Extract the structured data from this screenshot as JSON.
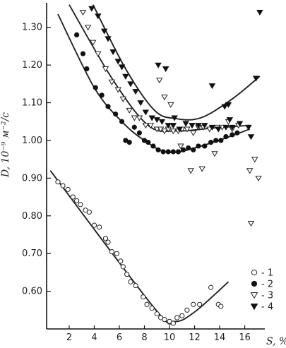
{
  "chart_data": {
    "type": "scatter",
    "title": "",
    "ylabel": "D, 10⁻⁹ м⁻²/с",
    "xlabel": "S, %",
    "xlim": [
      0.2,
      17.6
    ],
    "ylim": [
      0.5,
      1.365
    ],
    "x_ticks": [
      2,
      4,
      6,
      8,
      10,
      12,
      14,
      16
    ],
    "y_ticks": [
      0.6,
      0.7,
      0.8,
      0.9,
      1.0,
      1.1,
      1.2,
      1.3
    ],
    "y_tick_labels": [
      "0.60",
      "0.70",
      "0.80",
      "0.90",
      "1.00",
      "1.10",
      "1.20",
      "1.30"
    ],
    "grid": false,
    "legend_position": "bottom-right",
    "series": [
      {
        "name": "1",
        "marker": "circle-open",
        "points": [
          [
            1.1,
            0.89
          ],
          [
            1.5,
            0.88
          ],
          [
            1.9,
            0.87
          ],
          [
            2.3,
            0.85
          ],
          [
            2.6,
            0.84
          ],
          [
            2.9,
            0.83
          ],
          [
            3.3,
            0.815
          ],
          [
            3.6,
            0.81
          ],
          [
            4.0,
            0.775
          ],
          [
            4.4,
            0.77
          ],
          [
            4.9,
            0.74
          ],
          [
            5.1,
            0.73
          ],
          [
            5.4,
            0.705
          ],
          [
            5.8,
            0.7
          ],
          [
            6.1,
            0.68
          ],
          [
            6.3,
            0.665
          ],
          [
            6.6,
            0.645
          ],
          [
            6.9,
            0.625
          ],
          [
            7.3,
            0.615
          ],
          [
            7.9,
            0.585
          ],
          [
            8.2,
            0.565
          ],
          [
            8.6,
            0.555
          ],
          [
            9.0,
            0.54
          ],
          [
            9.3,
            0.53
          ],
          [
            9.6,
            0.525
          ],
          [
            10.0,
            0.52
          ],
          [
            10.3,
            0.515
          ],
          [
            10.6,
            0.53
          ],
          [
            11.0,
            0.535
          ],
          [
            11.4,
            0.55
          ],
          [
            11.9,
            0.565
          ],
          [
            12.4,
            0.565
          ],
          [
            13.3,
            0.61
          ],
          [
            13.9,
            0.565
          ],
          [
            14.1,
            0.56
          ]
        ],
        "fit": [
          [
            0.5,
            0.92
          ],
          [
            8.8,
            0.555
          ],
          [
            10.4,
            0.52
          ],
          [
            12.0,
            0.545
          ],
          [
            14.7,
            0.625
          ]
        ]
      },
      {
        "name": "2",
        "marker": "circle-filled",
        "points": [
          [
            2.6,
            1.28
          ],
          [
            3.1,
            1.23
          ],
          [
            3.4,
            1.19
          ],
          [
            4.1,
            1.14
          ],
          [
            4.6,
            1.12
          ],
          [
            5.1,
            1.09
          ],
          [
            5.7,
            1.07
          ],
          [
            6.2,
            1.05
          ],
          [
            6.5,
            1.0
          ],
          [
            6.8,
            0.995
          ],
          [
            7.2,
            1.035
          ],
          [
            7.6,
            1.02
          ],
          [
            8.0,
            1.0
          ],
          [
            8.3,
            0.995
          ],
          [
            8.7,
            0.985
          ],
          [
            9.1,
            0.975
          ],
          [
            9.5,
            0.97
          ],
          [
            9.9,
            0.97
          ],
          [
            10.3,
            0.97
          ],
          [
            10.7,
            0.97
          ],
          [
            11.1,
            0.975
          ],
          [
            11.5,
            0.98
          ],
          [
            11.9,
            0.975
          ],
          [
            12.3,
            0.985
          ],
          [
            12.8,
            0.985
          ],
          [
            13.3,
            0.995
          ],
          [
            13.7,
            1.0
          ],
          [
            14.1,
            1.0
          ],
          [
            14.5,
            1.01
          ],
          [
            15.0,
            1.015
          ],
          [
            15.4,
            1.02
          ]
        ],
        "fit": [
          [
            1.1,
            1.335
          ],
          [
            4.0,
            1.14
          ],
          [
            6.2,
            1.05
          ],
          [
            8.0,
            1.0
          ],
          [
            10.0,
            0.968
          ],
          [
            13.0,
            0.99
          ],
          [
            16.4,
            1.03
          ]
        ]
      },
      {
        "name": "3",
        "marker": "triangle-down-open",
        "points": [
          [
            3.1,
            1.34
          ],
          [
            3.5,
            1.3
          ],
          [
            3.9,
            1.26
          ],
          [
            4.3,
            1.23
          ],
          [
            4.9,
            1.19
          ],
          [
            5.4,
            1.155
          ],
          [
            5.9,
            1.135
          ],
          [
            6.3,
            1.11
          ],
          [
            6.8,
            1.08
          ],
          [
            7.2,
            1.06
          ],
          [
            7.6,
            1.06
          ],
          [
            8.1,
            1.04
          ],
          [
            8.5,
            1.04
          ],
          [
            9.0,
            1.03
          ],
          [
            9.3,
            1.03
          ],
          [
            9.6,
            1.025
          ],
          [
            9.9,
            1.03
          ],
          [
            10.3,
            1.025
          ],
          [
            10.7,
            1.025
          ],
          [
            11.0,
            1.03
          ],
          [
            11.4,
            1.03
          ],
          [
            11.9,
            1.02
          ],
          [
            12.3,
            1.035
          ],
          [
            12.7,
            1.035
          ],
          [
            13.2,
            1.03
          ],
          [
            13.8,
            1.035
          ],
          [
            14.2,
            1.035
          ],
          [
            15.0,
            1.03
          ],
          [
            15.5,
            1.04
          ],
          [
            9.6,
            1.115
          ],
          [
            10.1,
            1.095
          ],
          [
            9.2,
            1.16
          ],
          [
            10.9,
            0.985
          ],
          [
            11.7,
            0.92
          ],
          [
            12.6,
            0.925
          ],
          [
            13.6,
            0.965
          ],
          [
            14.7,
            1.05
          ],
          [
            16.4,
            0.92
          ],
          [
            16.8,
            0.95
          ],
          [
            17.1,
            0.9
          ],
          [
            16.5,
            0.78
          ]
        ],
        "fit": [
          [
            2.0,
            1.36
          ],
          [
            5.5,
            1.16
          ],
          [
            8.3,
            1.04
          ],
          [
            10.5,
            1.025
          ],
          [
            13.5,
            1.033
          ],
          [
            16.4,
            1.04
          ]
        ]
      },
      {
        "name": "4",
        "marker": "triangle-down-filled",
        "points": [
          [
            3.8,
            1.35
          ],
          [
            4.3,
            1.33
          ],
          [
            4.8,
            1.29
          ],
          [
            5.1,
            1.27
          ],
          [
            5.5,
            1.235
          ],
          [
            5.9,
            1.21
          ],
          [
            6.2,
            1.195
          ],
          [
            6.5,
            1.17
          ],
          [
            6.9,
            1.15
          ],
          [
            7.3,
            1.13
          ],
          [
            7.7,
            1.1
          ],
          [
            8.1,
            1.075
          ],
          [
            8.6,
            1.06
          ],
          [
            9.0,
            1.055
          ],
          [
            9.4,
            1.05
          ],
          [
            9.9,
            1.04
          ],
          [
            10.3,
            1.04
          ],
          [
            10.8,
            1.03
          ],
          [
            11.3,
            1.045
          ],
          [
            11.8,
            1.04
          ],
          [
            12.3,
            1.04
          ],
          [
            12.8,
            1.04
          ],
          [
            13.4,
            1.035
          ],
          [
            13.9,
            1.03
          ],
          [
            14.5,
            1.035
          ],
          [
            15.0,
            1.035
          ],
          [
            15.6,
            1.045
          ],
          [
            16.3,
            1.035
          ]
        ],
        "fit": [
          [
            3.9,
            1.36
          ],
          [
            6.5,
            1.19
          ],
          [
            8.8,
            1.08
          ],
          [
            10.5,
            1.058
          ],
          [
            12.5,
            1.06
          ],
          [
            15.0,
            1.11
          ],
          [
            17.2,
            1.17
          ]
        ]
      }
    ],
    "extra_points_series4": [
      [
        9.1,
        1.2
      ],
      [
        9.7,
        1.19
      ],
      [
        10.4,
        1.06
      ],
      [
        13.4,
        1.145
      ],
      [
        14.4,
        1.09
      ],
      [
        14.7,
        1.095
      ],
      [
        14.8,
        1.055
      ],
      [
        16.5,
        1.01
      ],
      [
        17.2,
        1.34
      ],
      [
        16.9,
        1.165
      ]
    ]
  }
}
